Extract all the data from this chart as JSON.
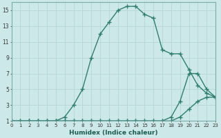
{
  "xlabel": "Humidex (Indice chaleur)",
  "background_color": "#cce8e8",
  "line_color": "#2e7d6e",
  "grid_color": "#b8d8d8",
  "xlim": [
    0,
    23
  ],
  "ylim": [
    1,
    16
  ],
  "xticks": [
    0,
    1,
    2,
    3,
    4,
    5,
    6,
    7,
    8,
    9,
    10,
    11,
    12,
    13,
    14,
    15,
    16,
    17,
    18,
    19,
    20,
    21,
    22,
    23
  ],
  "yticks": [
    1,
    3,
    5,
    7,
    9,
    11,
    13,
    15
  ],
  "line1_x": [
    0,
    1,
    2,
    3,
    4,
    5,
    6,
    7,
    8,
    9,
    10,
    11,
    12,
    13,
    14,
    15,
    16,
    17,
    18,
    19,
    20,
    21,
    22,
    23
  ],
  "line1_y": [
    1,
    1,
    1,
    1,
    1,
    1,
    1,
    1,
    1,
    1,
    1,
    1,
    1,
    1,
    1,
    1,
    1,
    1,
    1,
    1.5,
    2.5,
    3.5,
    4,
    4
  ],
  "line2_x": [
    0,
    1,
    2,
    3,
    4,
    5,
    6,
    7,
    8,
    9,
    10,
    11,
    12,
    13,
    14,
    15,
    16,
    17,
    18,
    19,
    20,
    21,
    22,
    23
  ],
  "line2_y": [
    1,
    1,
    1,
    1,
    1,
    1,
    1,
    1,
    1,
    1,
    1,
    1,
    1,
    1,
    1,
    1,
    1,
    1,
    1.5,
    3.5,
    7,
    7,
    5,
    4
  ],
  "line3_x": [
    0,
    2,
    3,
    4,
    5,
    6,
    7,
    8,
    9,
    10,
    11,
    12,
    13,
    14,
    15,
    16,
    17,
    18,
    19,
    20,
    21,
    22,
    23
  ],
  "line3_y": [
    1,
    1,
    1,
    1,
    1,
    1.5,
    3,
    5,
    9,
    12,
    13.5,
    15,
    15.5,
    15.5,
    14.5,
    14,
    10,
    9.5,
    9.5,
    7.5,
    5.5,
    4.5,
    4
  ],
  "marker": "+",
  "markersize": 4,
  "linewidth": 1.0
}
